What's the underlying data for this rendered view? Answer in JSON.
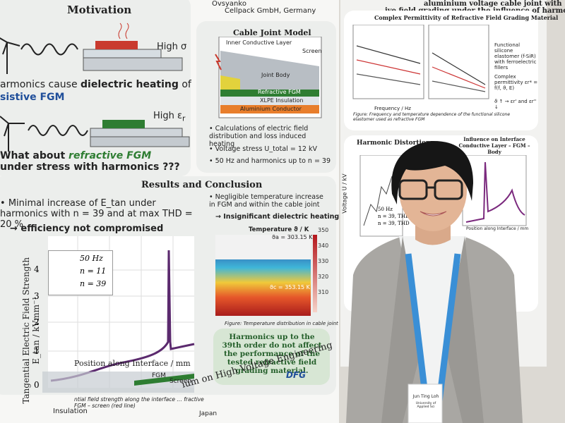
{
  "left_poster": {
    "header": {
      "author": "Ovsyanko",
      "affiliation": "Cellpack GmbH, Germany"
    },
    "motivation": {
      "title": "Motivation",
      "label_sigma": "High σ",
      "line1_a": "armonics cause ",
      "line1_b": "dielectric heating",
      "line1_c": " of",
      "line2": "sistive FGM",
      "label_eps": "High ε",
      "label_eps_sub": "r",
      "question_a": "What about ",
      "question_b": "refractive FGM",
      "question_c": " under stress with harmonics ???"
    },
    "cable_joint": {
      "title": "Cable Joint Model",
      "layers": [
        "Inner Conductive Layer",
        "Screen",
        "Joint Body",
        "Refractive FGM",
        "XLPE Insulation",
        "Aluminium Conductor"
      ],
      "bullets": [
        "Calculations of electric field distribution and loss induced heating",
        "Voltage stress U_total = 12 kV",
        "50 Hz and harmonics up to n = 39"
      ]
    },
    "results": {
      "title": "Results and Conclusion",
      "point1": "Minimal increase of E_tan under harmonics with n = 39 and at max THD = 20 %",
      "point1_conclusion": "→ efficiency not compromised",
      "point2": "Negligible temperature increase in FGM and within the cable joint",
      "point2_conclusion": "→ Insignificant dielectric heating",
      "temperature_title": "Temperature ϑ / K",
      "temp_a": "ϑa = 303.15 K",
      "temp_c": "ϑc = 353.15 K",
      "colorbar_ticks": [
        "350",
        "340",
        "330",
        "320",
        "310"
      ],
      "temperature_caption": "Figure: Temperature distribution in cable joint",
      "summary": "Harmonics up to the 39th order do not affect the performance of the tested refractive field grading material.",
      "field_chart": {
        "y_label": "Tangential Electric Field Strength E_tan / kVmm⁻¹",
        "y_ticks": [
          "4",
          "3",
          "2",
          "1",
          "0"
        ],
        "x_label": "Position along Interface / mm",
        "legend": [
          "50 Hz",
          "n = 11",
          "n = 39"
        ],
        "regions": [
          "FGM",
          "Screen",
          "Insulation"
        ],
        "caption": "ntial field strength along the interface … fractive FGM – screen (red line)"
      }
    },
    "footer": {
      "conference": "ium on High Voltage Engineering",
      "place": "Japan",
      "funder": "DFG"
    }
  },
  "right_poster": {
    "title_1": "aluminium voltage cable joint with",
    "title_2": "ive field grading under the influence of harmonics",
    "permittivity": {
      "title": "Complex Permittivity of Refractive Field Grading Material",
      "bullets": [
        "Functional silicone elastomer (f-SiR) with ferroelectric fillers",
        "Complex permittivity εr* = f(f, ϑ, E)",
        "ϑ ↑ → εr' and εr'' ↓"
      ],
      "x_label": "Frequency / Hz",
      "caption": "Figure: Frequency and temperature dependence of the functional silicone elastomer used as refractive FGM"
    },
    "harmonic": {
      "title": "Harmonic Distortion",
      "y_label": "Voltage U / kV",
      "legend": [
        "50 Hz",
        "n = 39, THD",
        "n = 39, THD"
      ]
    },
    "interface": {
      "title": "Influence on Interface Conductive Layer – FGM – Body",
      "x_label": "Position along Interface / mm"
    }
  },
  "badge": {
    "name": "Jun Ting Loh",
    "affiliation": "University of Applied Sci"
  }
}
